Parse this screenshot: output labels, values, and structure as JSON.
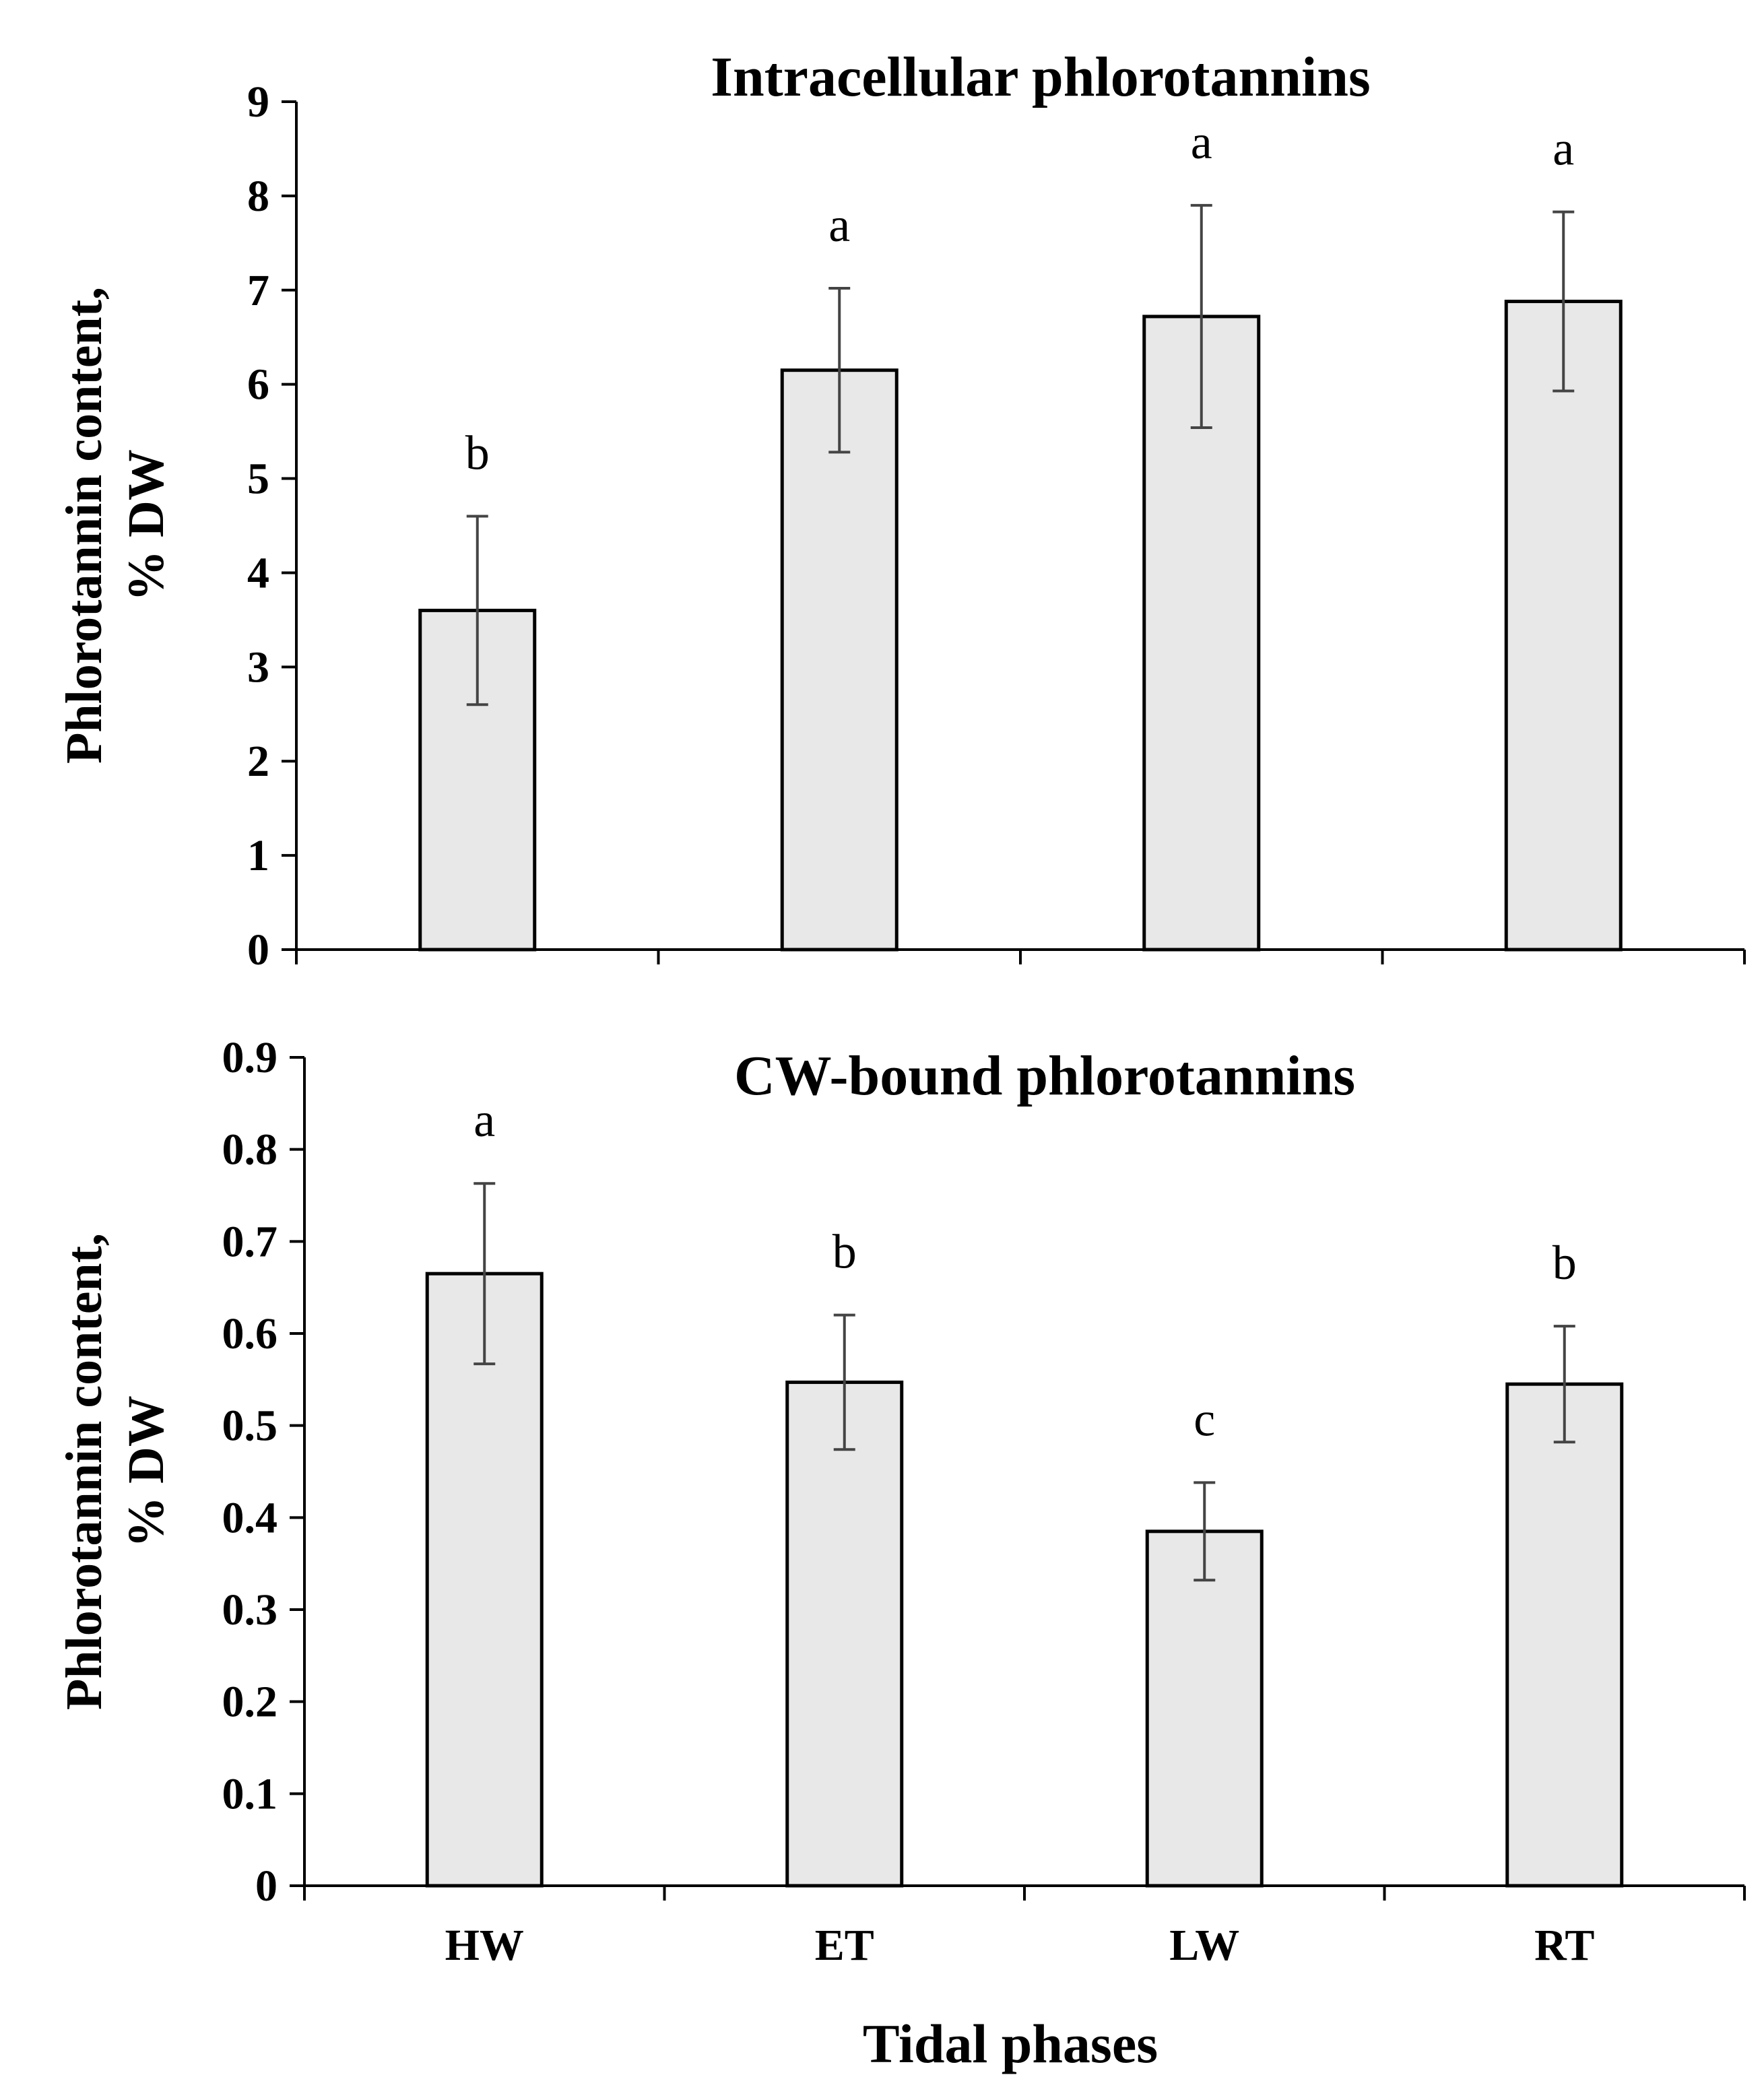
{
  "figure": {
    "xlabel": "Tidal phases"
  },
  "chart_data": [
    {
      "type": "bar",
      "title": "Intracellular phlorotannins",
      "ylabel_line1": "Phlorotannin content,",
      "ylabel_line2": "% DW",
      "categories": [
        "HW",
        "ET",
        "LW",
        "RT"
      ],
      "values": [
        3.6,
        6.15,
        6.72,
        6.88
      ],
      "errors": [
        1.0,
        0.87,
        1.18,
        0.95
      ],
      "significance": [
        "b",
        "a",
        "a",
        "a"
      ],
      "ylim": [
        0,
        9
      ],
      "yticks": [
        0,
        1,
        2,
        3,
        4,
        5,
        6,
        7,
        8,
        9
      ],
      "ytick_labels": [
        "0",
        "1",
        "2",
        "3",
        "4",
        "5",
        "6",
        "7",
        "8",
        "9"
      ],
      "show_category_labels": false,
      "bar_color": "#e8e8e8",
      "grid": false
    },
    {
      "type": "bar",
      "title": "CW-bound phlorotannins",
      "ylabel_line1": "Phlorotannin content,",
      "ylabel_line2": "% DW",
      "categories": [
        "HW",
        "ET",
        "LW",
        "RT"
      ],
      "values": [
        0.665,
        0.547,
        0.385,
        0.545
      ],
      "errors": [
        0.098,
        0.073,
        0.053,
        0.063
      ],
      "significance": [
        "a",
        "b",
        "c",
        "b"
      ],
      "ylim": [
        0,
        0.9
      ],
      "yticks": [
        0,
        0.1,
        0.2,
        0.3,
        0.4,
        0.5,
        0.6,
        0.7,
        0.8,
        0.9
      ],
      "ytick_labels": [
        "0",
        "0.1",
        "0.2",
        "0.3",
        "0.4",
        "0.5",
        "0.6",
        "0.7",
        "0.8",
        "0.9"
      ],
      "show_category_labels": true,
      "bar_color": "#e8e8e8",
      "grid": false
    }
  ]
}
